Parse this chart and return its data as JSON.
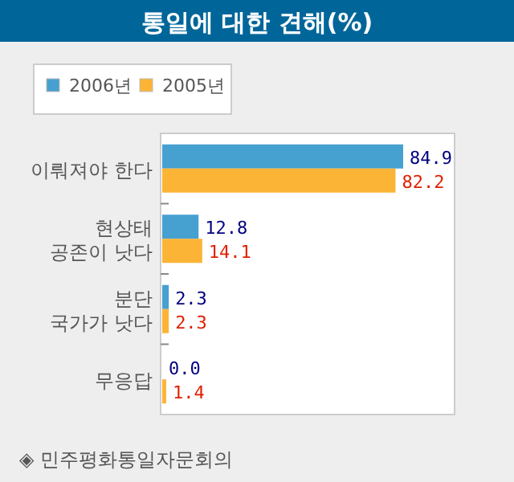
{
  "chart_data": {
    "type": "bar",
    "orientation": "horizontal",
    "title": "통일에 대한 견해(%)",
    "categories": [
      "이뤄져야 한다",
      "현상태\n공존이 낫다",
      "분단\n국가가 낫다",
      "무응답"
    ],
    "series": [
      {
        "name": "2006년",
        "color": "#46a0d0",
        "values": [
          84.9,
          12.8,
          2.3,
          0.0
        ],
        "value_labels": [
          "84.9",
          "12.8",
          "2.3",
          "0.0"
        ]
      },
      {
        "name": "2005년",
        "color": "#fbb436",
        "values": [
          82.2,
          14.1,
          2.3,
          1.4
        ],
        "value_labels": [
          "82.2",
          "14.1",
          "2.3",
          "1.4"
        ]
      }
    ],
    "legend": "top left",
    "annotations": [
      "◈ 민주평화통일자문회의"
    ]
  }
}
